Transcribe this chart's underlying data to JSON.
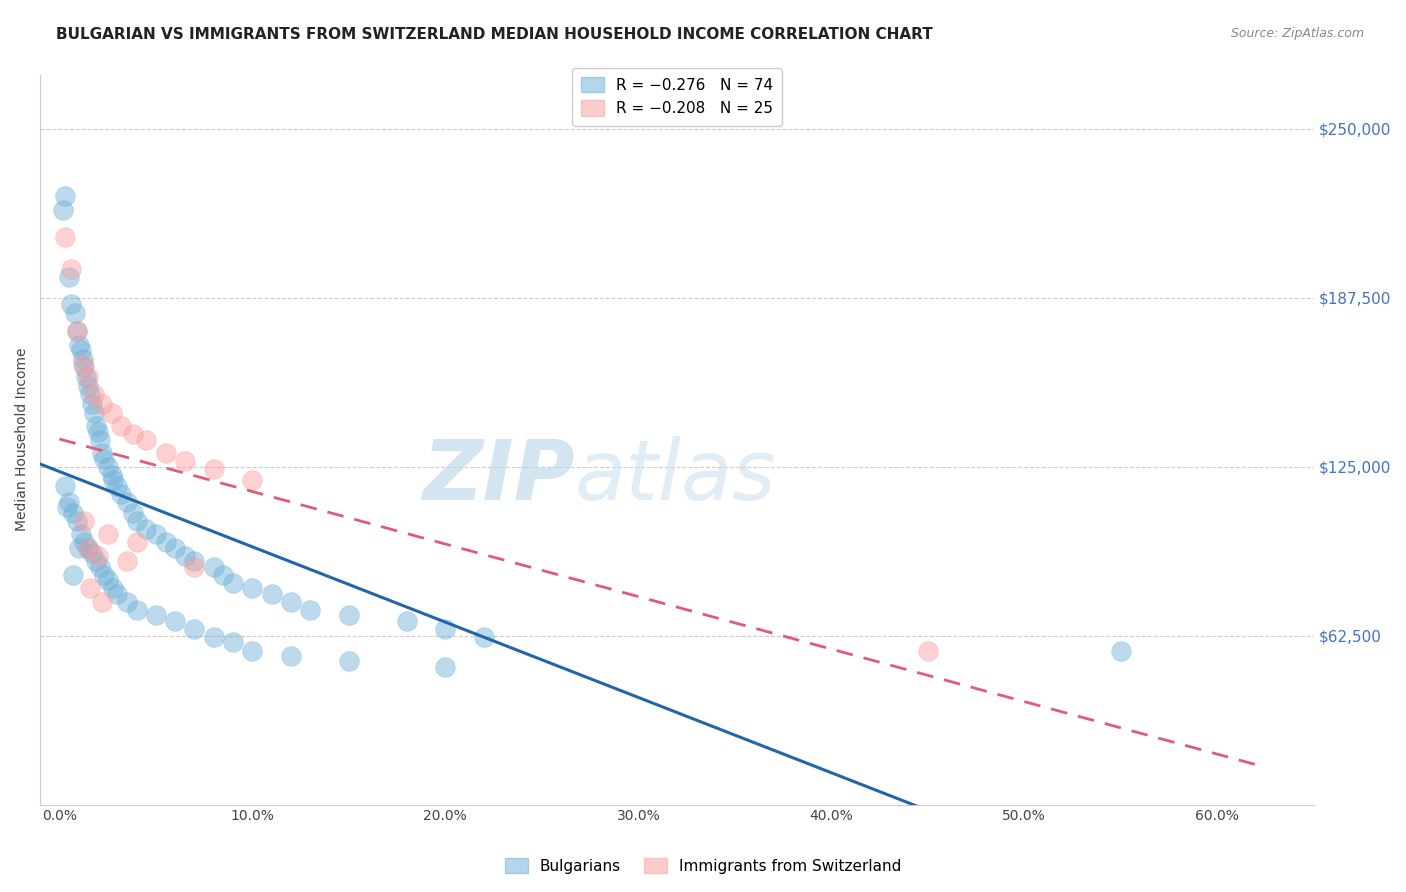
{
  "title": "BULGARIAN VS IMMIGRANTS FROM SWITZERLAND MEDIAN HOUSEHOLD INCOME CORRELATION CHART",
  "source": "Source: ZipAtlas.com",
  "ylabel": "Median Household Income",
  "xlabel_ticks": [
    "0.0%",
    "10.0%",
    "20.0%",
    "30.0%",
    "40.0%",
    "50.0%",
    "60.0%"
  ],
  "xlabel_vals": [
    0.0,
    0.1,
    0.2,
    0.3,
    0.4,
    0.5,
    0.6
  ],
  "ytick_labels": [
    "$250,000",
    "$187,500",
    "$125,000",
    "$62,500"
  ],
  "ytick_vals": [
    250000,
    187500,
    125000,
    62500
  ],
  "ylim": [
    0,
    270000
  ],
  "xlim": [
    -0.01,
    0.65
  ],
  "blue_scatter_x": [
    0.002,
    0.003,
    0.005,
    0.006,
    0.008,
    0.009,
    0.01,
    0.011,
    0.012,
    0.013,
    0.014,
    0.015,
    0.016,
    0.017,
    0.018,
    0.019,
    0.02,
    0.021,
    0.022,
    0.023,
    0.025,
    0.027,
    0.028,
    0.03,
    0.032,
    0.035,
    0.038,
    0.04,
    0.045,
    0.05,
    0.055,
    0.06,
    0.065,
    0.07,
    0.08,
    0.085,
    0.09,
    0.1,
    0.11,
    0.12,
    0.13,
    0.15,
    0.18,
    0.2,
    0.22,
    0.55,
    0.003,
    0.005,
    0.007,
    0.009,
    0.011,
    0.013,
    0.015,
    0.017,
    0.019,
    0.021,
    0.023,
    0.025,
    0.028,
    0.03,
    0.035,
    0.04,
    0.05,
    0.06,
    0.07,
    0.08,
    0.09,
    0.1,
    0.12,
    0.15,
    0.2,
    0.004,
    0.007,
    0.01
  ],
  "blue_scatter_y": [
    220000,
    225000,
    195000,
    185000,
    182000,
    175000,
    170000,
    168000,
    165000,
    162000,
    158000,
    155000,
    152000,
    148000,
    145000,
    140000,
    138000,
    135000,
    130000,
    128000,
    125000,
    122000,
    120000,
    118000,
    115000,
    112000,
    108000,
    105000,
    102000,
    100000,
    97000,
    95000,
    92000,
    90000,
    88000,
    85000,
    82000,
    80000,
    78000,
    75000,
    72000,
    70000,
    68000,
    65000,
    62000,
    57000,
    118000,
    112000,
    108000,
    105000,
    100000,
    97000,
    95000,
    93000,
    90000,
    88000,
    85000,
    83000,
    80000,
    78000,
    75000,
    72000,
    70000,
    68000,
    65000,
    62000,
    60000,
    57000,
    55000,
    53000,
    51000,
    110000,
    85000,
    95000
  ],
  "pink_scatter_x": [
    0.003,
    0.006,
    0.009,
    0.012,
    0.015,
    0.018,
    0.022,
    0.027,
    0.032,
    0.038,
    0.045,
    0.055,
    0.065,
    0.08,
    0.1,
    0.013,
    0.025,
    0.04,
    0.015,
    0.02,
    0.035,
    0.07,
    0.016,
    0.022,
    0.45
  ],
  "pink_scatter_y": [
    210000,
    198000,
    175000,
    163000,
    158000,
    152000,
    148000,
    145000,
    140000,
    137000,
    135000,
    130000,
    127000,
    124000,
    120000,
    105000,
    100000,
    97000,
    95000,
    92000,
    90000,
    88000,
    80000,
    75000,
    57000
  ],
  "watermark_zip": "ZIP",
  "watermark_atlas": "atlas",
  "background_color": "#ffffff",
  "grid_color": "#cccccc",
  "title_fontsize": 11,
  "blue_color": "#6baed6",
  "blue_line_color": "#2166ac",
  "pink_color": "#fb9a99",
  "pink_line_color": "#e05a7a",
  "tick_label_color": "#4472c4",
  "source_color": "#888888",
  "blue_label": "R = −0.276   N = 74",
  "pink_label": "R = −0.208   N = 25",
  "legend_bottom_blue": "Bulgarians",
  "legend_bottom_pink": "Immigrants from Switzerland"
}
